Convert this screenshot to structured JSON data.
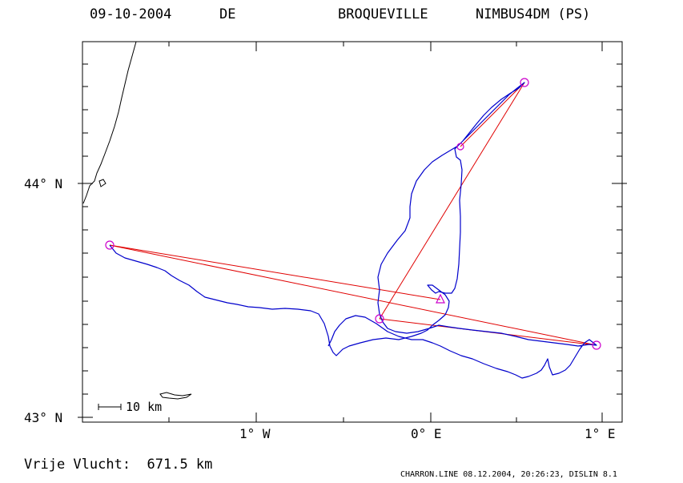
{
  "header": {
    "date": "09-10-2004",
    "country": "DE",
    "pilot": "BROQUEVILLE",
    "glider": "NIMBUS4DM (PS)"
  },
  "axes": {
    "y_labels": [
      "44° N",
      "43° N"
    ],
    "x_labels": [
      "1° W",
      "0° E",
      "1° E"
    ]
  },
  "scale_bar": {
    "label": "10 km"
  },
  "footer": {
    "distance": "Vrije Vlucht:  671.5 km",
    "credit": "CHARRON.LINE 08.12.2004, 20:26:23, DISLIN 8.1"
  },
  "colors": {
    "track": "#0000cc",
    "task": "#e00000",
    "turnpoint": "#cc00cc",
    "coast": "#000000"
  }
}
